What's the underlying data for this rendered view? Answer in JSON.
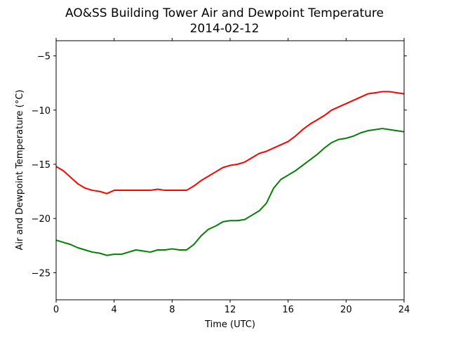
{
  "chart_data": {
    "type": "line",
    "title": "AO&SS Building Tower Air and Dewpoint Temperature",
    "subtitle": "2014-02-12",
    "xlabel": "Time (UTC)",
    "ylabel": "Air and Dewpoint Temperature (°C)",
    "xlim": [
      0,
      24
    ],
    "ylim": [
      -27.5,
      -3.6
    ],
    "xticks": [
      0,
      4,
      8,
      12,
      16,
      20,
      24
    ],
    "yticks": [
      -25,
      -20,
      -15,
      -10,
      -5
    ],
    "grid": false,
    "series": [
      {
        "color": "#ff0000",
        "x": [
          0,
          0.5,
          1,
          1.5,
          2,
          2.5,
          3,
          3.5,
          4,
          4.5,
          5,
          5.5,
          6,
          6.5,
          7,
          7.5,
          8,
          8.5,
          9,
          9.5,
          10,
          10.5,
          11,
          11.5,
          12,
          12.5,
          13,
          13.5,
          14,
          14.5,
          15,
          15.5,
          16,
          16.5,
          17,
          17.5,
          18,
          18.5,
          19,
          19.5,
          20,
          20.5,
          21,
          21.5,
          22,
          22.5,
          23,
          23.5,
          24
        ],
        "values": [
          -15.2,
          -15.6,
          -16.2,
          -16.8,
          -17.2,
          -17.4,
          -17.5,
          -17.7,
          -17.4,
          -17.4,
          -17.4,
          -17.4,
          -17.4,
          -17.4,
          -17.3,
          -17.4,
          -17.4,
          -17.4,
          -17.4,
          -17.0,
          -16.5,
          -16.1,
          -15.7,
          -15.3,
          -15.1,
          -15.0,
          -14.8,
          -14.4,
          -14.0,
          -13.8,
          -13.5,
          -13.2,
          -12.9,
          -12.4,
          -11.8,
          -11.3,
          -10.9,
          -10.5,
          -10.0,
          -9.7,
          -9.4,
          -9.1,
          -8.8,
          -8.5,
          -8.4,
          -8.3,
          -8.3,
          -8.4,
          -8.5
        ]
      },
      {
        "color": "#008000",
        "x": [
          0,
          0.5,
          1,
          1.5,
          2,
          2.5,
          3,
          3.5,
          4,
          4.5,
          5,
          5.5,
          6,
          6.5,
          7,
          7.5,
          8,
          8.5,
          9,
          9.5,
          10,
          10.5,
          11,
          11.5,
          12,
          12.5,
          13,
          13.5,
          14,
          14.5,
          15,
          15.5,
          16,
          16.5,
          17,
          17.5,
          18,
          18.5,
          19,
          19.5,
          20,
          20.5,
          21,
          21.5,
          22,
          22.5,
          23,
          23.5,
          24
        ],
        "values": [
          -22.0,
          -22.2,
          -22.4,
          -22.7,
          -22.9,
          -23.1,
          -23.2,
          -23.4,
          -23.3,
          -23.3,
          -23.1,
          -22.9,
          -23.0,
          -23.1,
          -22.9,
          -22.9,
          -22.8,
          -22.9,
          -22.9,
          -22.4,
          -21.6,
          -21.0,
          -20.7,
          -20.3,
          -20.2,
          -20.2,
          -20.1,
          -19.7,
          -19.3,
          -18.6,
          -17.2,
          -16.4,
          -16.0,
          -15.6,
          -15.1,
          -14.6,
          -14.1,
          -13.5,
          -13.0,
          -12.7,
          -12.6,
          -12.4,
          -12.1,
          -11.9,
          -11.8,
          -11.7,
          -11.8,
          -11.9,
          -12.0
        ]
      }
    ]
  }
}
